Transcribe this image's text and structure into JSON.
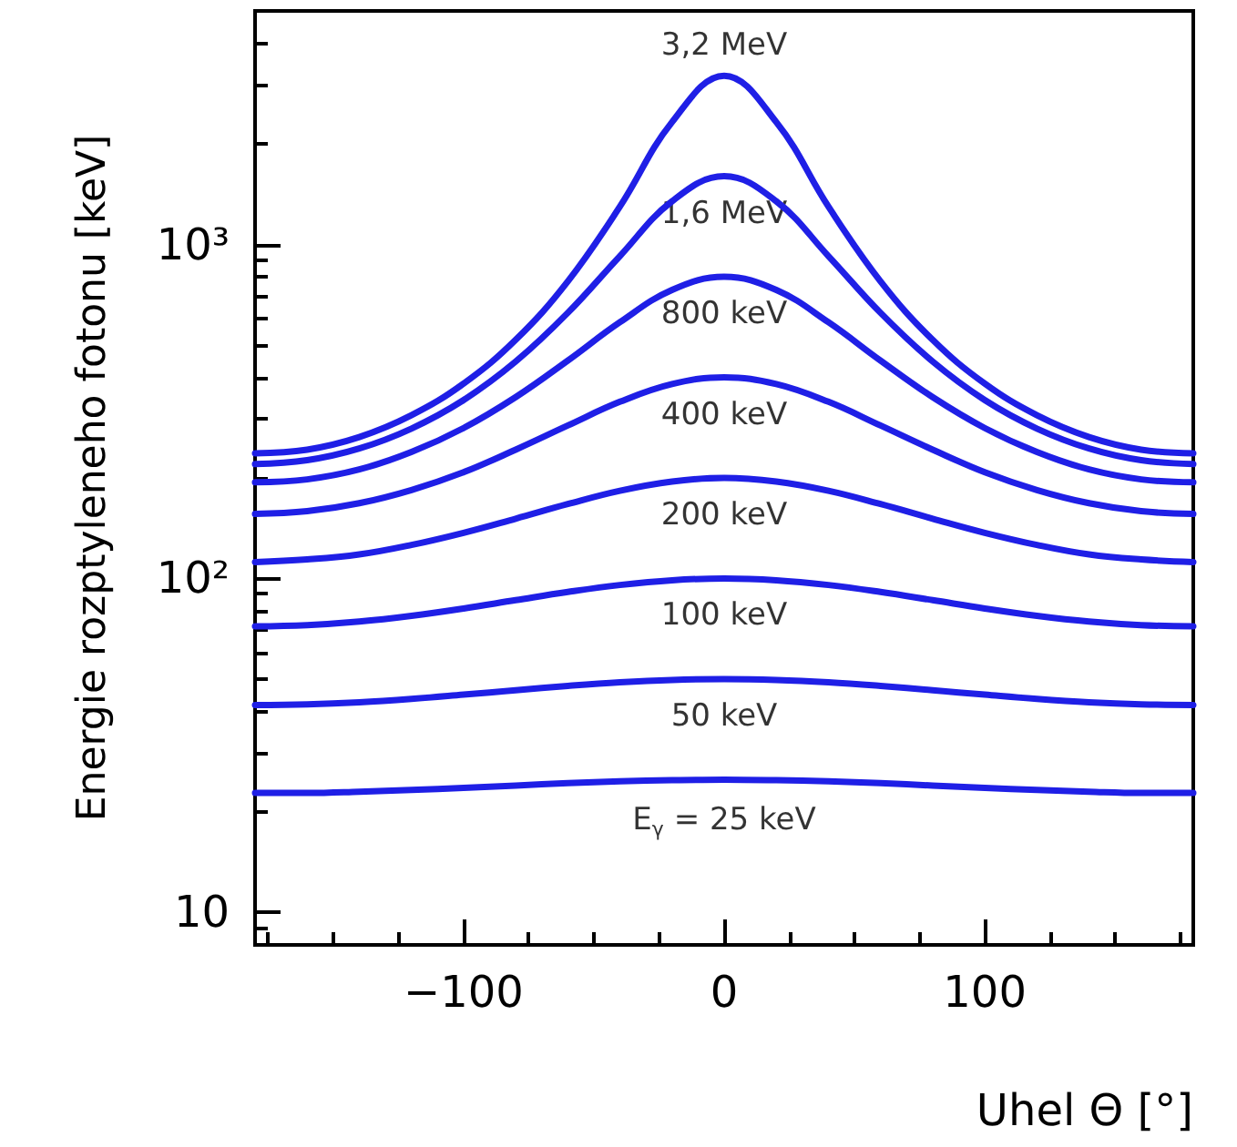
{
  "chart_data": {
    "type": "line",
    "xlabel": "Uhel Θ [°]",
    "ylabel": "Energie rozptyleneho fotonu [keV]",
    "x": [
      -180,
      -160,
      -140,
      -120,
      -100,
      -80,
      -60,
      -40,
      -20,
      0,
      20,
      40,
      60,
      80,
      100,
      120,
      140,
      160,
      180
    ],
    "series": [
      {
        "color": "#1f1fe6",
        "values": [
          237,
          243,
          265,
          308,
          383,
          518,
          775,
          1298,
          2323,
          3200,
          2323,
          1298,
          775,
          518,
          383,
          308,
          265,
          243,
          237
        ]
      },
      {
        "color": "#1f1fe6",
        "values": [
          220,
          226,
          245,
          281,
          342,
          446,
          624,
          923,
          1346,
          1600,
          1346,
          923,
          624,
          446,
          342,
          281,
          245,
          226,
          220
        ]
      },
      {
        "color": "#1f1fe6",
        "values": [
          194,
          198,
          212,
          239,
          282,
          349,
          449,
          585,
          731,
          800,
          731,
          585,
          449,
          349,
          282,
          239,
          212,
          198,
          194
        ]
      },
      {
        "color": "#1f1fe6",
        "values": [
          156,
          159,
          168,
          184,
          208,
          243,
          287,
          338,
          382,
          400,
          382,
          338,
          287,
          243,
          208,
          184,
          168,
          159,
          156
        ]
      },
      {
        "color": "#1f1fe6",
        "values": [
          112,
          114,
          118,
          126,
          137,
          151,
          167,
          183,
          195,
          200,
          195,
          183,
          167,
          151,
          137,
          126,
          118,
          114,
          112
        ]
      },
      {
        "color": "#1f1fe6",
        "values": [
          71.9,
          72.5,
          74.3,
          77.3,
          81.3,
          86.1,
          91.1,
          95.6,
          98.8,
          100,
          98.8,
          95.6,
          91.1,
          86.1,
          81.3,
          77.3,
          74.3,
          72.5,
          71.9
        ]
      },
      {
        "color": "#1f1fe6",
        "values": [
          41.8,
          42.0,
          42.6,
          43.6,
          44.9,
          46.3,
          47.7,
          48.9,
          49.7,
          50,
          49.7,
          48.9,
          47.7,
          46.3,
          44.9,
          43.6,
          42.6,
          42.0,
          41.8
        ]
      },
      {
        "color": "#1f1fe6",
        "values": [
          22.8,
          22.8,
          23.0,
          23.3,
          23.6,
          24.0,
          24.4,
          24.7,
          24.9,
          25,
          24.9,
          24.7,
          24.4,
          24.0,
          23.6,
          23.3,
          23.0,
          22.8,
          22.8
        ]
      }
    ],
    "annotations": [
      "3,2 MeV",
      "1,6 MeV",
      "800 keV",
      "400 keV",
      "200 keV",
      "100 keV",
      "50 keV",
      "E$_{γ}$ = 25 keV"
    ],
    "log": "y",
    "xlim": [
      -180,
      180
    ],
    "ylim": [
      8,
      5000
    ],
    "xticks": [
      {
        "value": -175,
        "label": null
      },
      {
        "value": -150,
        "label": null
      },
      {
        "value": -125,
        "label": null
      },
      {
        "value": -100,
        "label": "−100"
      },
      {
        "value": -75,
        "label": null
      },
      {
        "value": -50,
        "label": null
      },
      {
        "value": -25,
        "label": null
      },
      0,
      {
        "value": 25,
        "label": null
      },
      {
        "value": 50,
        "label": null
      },
      {
        "value": 75,
        "label": null
      },
      100,
      {
        "value": 125,
        "label": null
      },
      {
        "value": 150,
        "label": null
      },
      {
        "value": 175,
        "label": null
      }
    ],
    "yticks": [
      {
        "value": 8,
        "label": null
      },
      {
        "value": 9,
        "label": null
      },
      10,
      {
        "value": 20,
        "label": null
      },
      {
        "value": 30,
        "label": null
      },
      {
        "value": 40,
        "label": null
      },
      {
        "value": 50,
        "label": null
      },
      {
        "value": 60,
        "label": null
      },
      {
        "value": 70,
        "label": null
      },
      {
        "value": 80,
        "label": null
      },
      {
        "value": 90,
        "label": null
      },
      {
        "value": 100,
        "label": "10²"
      },
      {
        "value": 200,
        "label": null
      },
      {
        "value": 300,
        "label": null
      },
      {
        "value": 400,
        "label": null
      },
      {
        "value": 500,
        "label": null
      },
      {
        "value": 600,
        "label": null
      },
      {
        "value": 700,
        "label": null
      },
      {
        "value": 800,
        "label": null
      },
      {
        "value": 900,
        "label": null
      },
      {
        "value": 1000,
        "label": "10³"
      },
      {
        "value": 2000,
        "label": null
      },
      {
        "value": 3000,
        "label": null
      },
      {
        "value": 4000,
        "label": null
      },
      {
        "value": 5000,
        "label": null
      }
    ],
    "grid": false,
    "marker": "none",
    "line_style": "solid"
  }
}
